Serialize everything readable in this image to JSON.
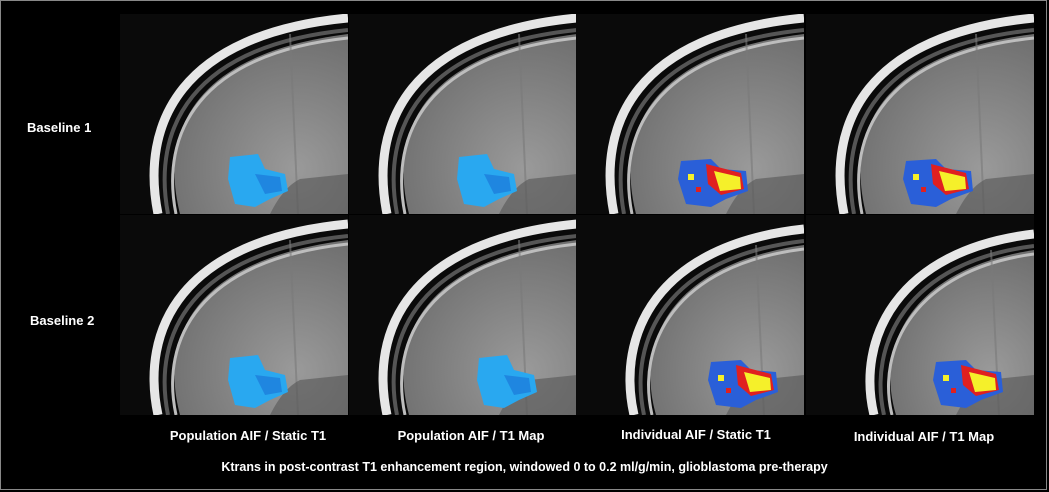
{
  "rows": [
    {
      "label": "Baseline 1"
    },
    {
      "label": "Baseline 2"
    }
  ],
  "columns": [
    {
      "label": "Population AIF / Static T1",
      "colormap": "uniform-blue"
    },
    {
      "label": "Population AIF / T1 Map",
      "colormap": "uniform-blue"
    },
    {
      "label": "Individual AIF / Static T1",
      "colormap": "heat"
    },
    {
      "label": "Individual AIF / T1 Map",
      "colormap": "heat"
    }
  ],
  "caption": "Ktrans in post-contrast T1 enhancement region, windowed 0 to 0.2 ml/g/min,  glioblastoma pre-therapy",
  "colors": {
    "background": "#000000",
    "tissue": "#8a8a8a",
    "skull": "#e6e6e6",
    "blue_low": "#2a5fd8",
    "blue_mid": "#29a8f0",
    "red": "#e02020",
    "yellow": "#f5f02a"
  }
}
